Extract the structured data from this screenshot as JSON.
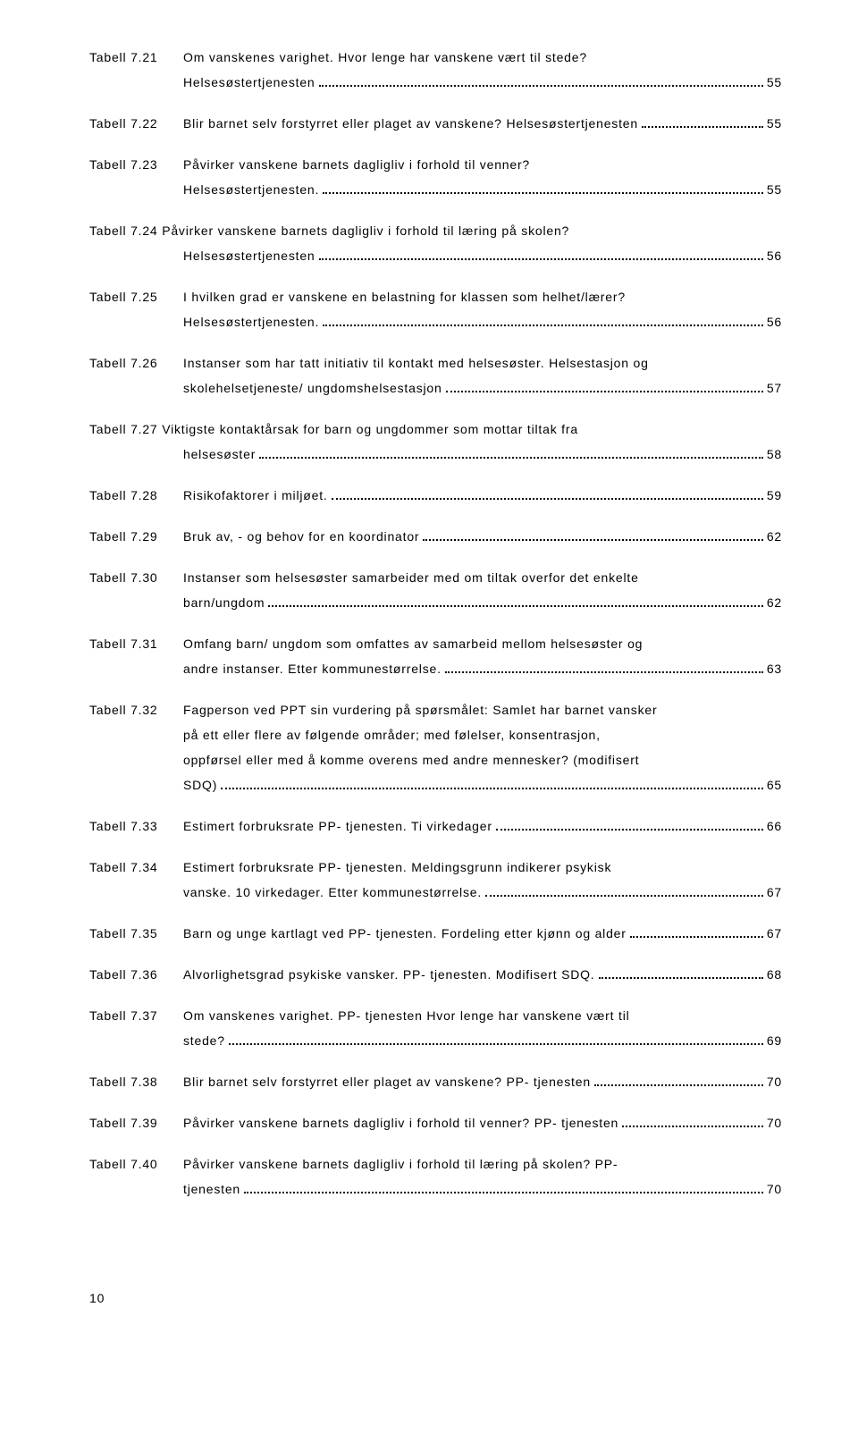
{
  "entries": [
    {
      "label": "Tabell 7.21",
      "lines": [
        {
          "text": "Om vanskenes varighet. Hvor lenge har vanskene vært til stede?",
          "page": null
        },
        {
          "text": "Helsesøstertjenesten",
          "page": "55"
        }
      ]
    },
    {
      "label": "Tabell 7.22",
      "lines": [
        {
          "text": "Blir barnet selv forstyrret eller plaget av vanskene? Helsesøstertjenesten",
          "page": "55"
        }
      ]
    },
    {
      "label": "Tabell 7.23",
      "lines": [
        {
          "text": "Påvirker vanskene barnets dagligliv i forhold til venner?",
          "page": null
        },
        {
          "text": "Helsesøstertjenesten.",
          "page": "55"
        }
      ]
    },
    {
      "label": "",
      "full": true,
      "lines": [
        {
          "text": "Tabell 7.24 Påvirker vanskene barnets dagligliv i forhold til læring på skolen?",
          "page": null
        },
        {
          "text": "Helsesøstertjenesten",
          "page": "56",
          "indent": true
        }
      ]
    },
    {
      "label": "Tabell 7.25",
      "lines": [
        {
          "text": "I hvilken grad er vanskene en belastning for klassen som helhet/lærer?",
          "page": null
        },
        {
          "text": "Helsesøstertjenesten.",
          "page": "56"
        }
      ]
    },
    {
      "label": "Tabell 7.26",
      "lines": [
        {
          "text": "Instanser som har tatt initiativ til kontakt med helsesøster. Helsestasjon og",
          "page": null
        },
        {
          "text": "skolehelsetjeneste/ ungdomshelsestasjon",
          "page": "57"
        }
      ]
    },
    {
      "label": "",
      "full": true,
      "lines": [
        {
          "text": "Tabell 7.27 Viktigste kontaktårsak for barn og ungdommer som mottar tiltak fra",
          "page": null
        },
        {
          "text": "helsesøster",
          "page": "58",
          "indent": true
        }
      ]
    },
    {
      "label": "Tabell 7.28",
      "lines": [
        {
          "text": " Risikofaktorer i miljøet.",
          "page": "59"
        }
      ]
    },
    {
      "label": "Tabell 7.29",
      "lines": [
        {
          "text": "Bruk av, - og behov for en koordinator",
          "page": "62"
        }
      ]
    },
    {
      "label": "Tabell 7.30",
      "lines": [
        {
          "text": "Instanser som helsesøster samarbeider med om tiltak overfor det enkelte",
          "page": null
        },
        {
          "text": "barn/ungdom",
          "page": "62"
        }
      ]
    },
    {
      "label": "Tabell 7.31",
      "lines": [
        {
          "text": "Omfang barn/ ungdom som omfattes av samarbeid mellom helsesøster og",
          "page": null
        },
        {
          "text": "andre instanser. Etter kommunestørrelse.",
          "page": "63"
        }
      ]
    },
    {
      "label": "Tabell 7.32",
      "lines": [
        {
          "text": "Fagperson ved PPT sin vurdering på spørsmålet: Samlet har barnet vansker",
          "page": null
        },
        {
          "text": "på ett eller flere av følgende områder; med følelser, konsentrasjon,",
          "page": null
        },
        {
          "text": "oppførsel eller med å komme overens med andre mennesker? (modifisert",
          "page": null
        },
        {
          "text": "SDQ)",
          "page": "65"
        }
      ]
    },
    {
      "label": "Tabell 7.33",
      "lines": [
        {
          "text": "Estimert forbruksrate PP- tjenesten. Ti virkedager",
          "page": "66"
        }
      ]
    },
    {
      "label": "Tabell 7.34",
      "lines": [
        {
          "text": "Estimert forbruksrate PP- tjenesten. Meldingsgrunn indikerer psykisk",
          "page": null
        },
        {
          "text": "vanske. 10 virkedager. Etter kommunestørrelse.",
          "page": "67"
        }
      ]
    },
    {
      "label": "Tabell 7.35",
      "lines": [
        {
          "text": "Barn og unge kartlagt ved PP- tjenesten. Fordeling etter kjønn og alder",
          "page": "67"
        }
      ]
    },
    {
      "label": "Tabell 7.36",
      "lines": [
        {
          "text": "Alvorlighetsgrad psykiske vansker. PP- tjenesten. Modifisert SDQ.",
          "page": "68"
        }
      ]
    },
    {
      "label": "Tabell 7.37",
      "lines": [
        {
          "text": "Om vanskenes varighet. PP- tjenesten Hvor lenge har vanskene vært til",
          "page": null
        },
        {
          "text": "stede?",
          "page": "69"
        }
      ]
    },
    {
      "label": "Tabell 7.38",
      "lines": [
        {
          "text": "Blir barnet selv forstyrret eller plaget av vanskene? PP- tjenesten",
          "page": "70"
        }
      ]
    },
    {
      "label": "Tabell 7.39",
      "lines": [
        {
          "text": "Påvirker vanskene barnets dagligliv i forhold til venner? PP- tjenesten",
          "page": "70"
        }
      ]
    },
    {
      "label": "Tabell 7.40",
      "lines": [
        {
          "text": "Påvirker vanskene barnets dagligliv i forhold til læring på skolen? PP-",
          "page": null
        },
        {
          "text": "tjenesten",
          "page": "70"
        }
      ]
    }
  ],
  "pageNumber": "10"
}
